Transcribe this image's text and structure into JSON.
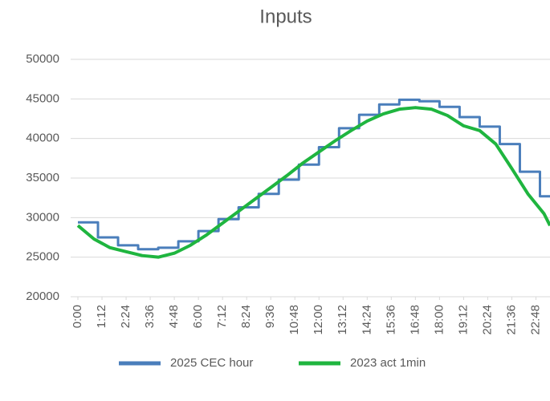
{
  "chart_data": {
    "type": "line",
    "title": "Inputs",
    "xlim": [
      0,
      1410
    ],
    "xticks": [
      {
        "value": 0,
        "label": "0:00"
      },
      {
        "value": 72,
        "label": "1:12"
      },
      {
        "value": 144,
        "label": "2:24"
      },
      {
        "value": 216,
        "label": "3:36"
      },
      {
        "value": 288,
        "label": "4:48"
      },
      {
        "value": 360,
        "label": "6:00"
      },
      {
        "value": 432,
        "label": "7:12"
      },
      {
        "value": 504,
        "label": "8:24"
      },
      {
        "value": 576,
        "label": "9:36"
      },
      {
        "value": 648,
        "label": "10:48"
      },
      {
        "value": 720,
        "label": "12:00"
      },
      {
        "value": 792,
        "label": "13:12"
      },
      {
        "value": 864,
        "label": "14:24"
      },
      {
        "value": 936,
        "label": "15:36"
      },
      {
        "value": 1008,
        "label": "16:48"
      },
      {
        "value": 1080,
        "label": "18:00"
      },
      {
        "value": 1152,
        "label": "19:12"
      },
      {
        "value": 1224,
        "label": "20:24"
      },
      {
        "value": 1296,
        "label": "21:36"
      },
      {
        "value": 1368,
        "label": "22:48"
      }
    ],
    "ylim": [
      20000,
      50000
    ],
    "yticks": [
      20000,
      25000,
      30000,
      35000,
      40000,
      45000,
      50000
    ],
    "grid": true,
    "legend": "bottom",
    "series": [
      {
        "name": "2025 CEC hour",
        "color": "#4a7ebb",
        "step": true,
        "x": [
          0,
          60,
          120,
          180,
          240,
          300,
          360,
          420,
          480,
          540,
          600,
          660,
          720,
          780,
          840,
          900,
          960,
          1020,
          1080,
          1140,
          1200,
          1260,
          1320,
          1380
        ],
        "values": [
          29400,
          27500,
          26500,
          26000,
          26200,
          27000,
          28300,
          29800,
          31300,
          33000,
          34800,
          36700,
          38900,
          41300,
          43000,
          44300,
          44900,
          44700,
          44000,
          42700,
          41500,
          39300,
          35800,
          32700
        ]
      },
      {
        "name": "2023 act 1min",
        "color": "#1fb53f",
        "step": false,
        "x": [
          0,
          48,
          96,
          144,
          192,
          240,
          288,
          336,
          384,
          432,
          480,
          528,
          576,
          624,
          672,
          720,
          768,
          816,
          864,
          912,
          960,
          1008,
          1056,
          1104,
          1152,
          1200,
          1248,
          1296,
          1344,
          1392,
          1410
        ],
        "values": [
          29000,
          27300,
          26200,
          25700,
          25200,
          25000,
          25500,
          26500,
          27800,
          29300,
          30800,
          32300,
          33800,
          35300,
          36900,
          38300,
          39700,
          41000,
          42200,
          43100,
          43700,
          43900,
          43700,
          42900,
          41600,
          41000,
          39300,
          36200,
          33000,
          30500,
          29000
        ]
      }
    ]
  }
}
